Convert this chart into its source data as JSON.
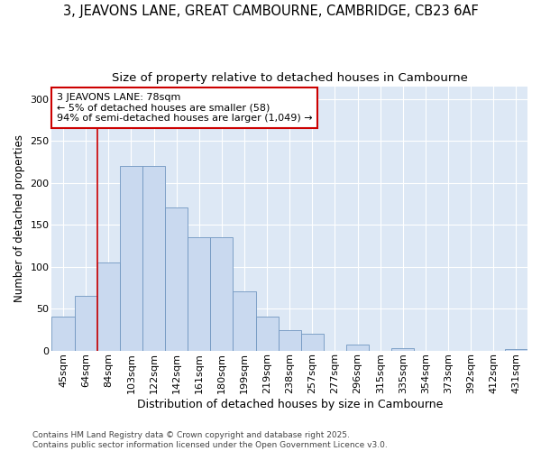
{
  "title1": "3, JEAVONS LANE, GREAT CAMBOURNE, CAMBRIDGE, CB23 6AF",
  "title2": "Size of property relative to detached houses in Cambourne",
  "xlabel": "Distribution of detached houses by size in Cambourne",
  "ylabel": "Number of detached properties",
  "categories": [
    "45sqm",
    "64sqm",
    "84sqm",
    "103sqm",
    "122sqm",
    "142sqm",
    "161sqm",
    "180sqm",
    "199sqm",
    "219sqm",
    "238sqm",
    "257sqm",
    "277sqm",
    "296sqm",
    "315sqm",
    "335sqm",
    "354sqm",
    "373sqm",
    "392sqm",
    "412sqm",
    "431sqm"
  ],
  "values": [
    40,
    65,
    105,
    220,
    220,
    170,
    135,
    135,
    70,
    40,
    24,
    20,
    0,
    7,
    0,
    3,
    0,
    0,
    0,
    0,
    2
  ],
  "bar_color": "#c9d9ef",
  "bar_edge_color": "#7096c0",
  "vline_index": 1,
  "vline_color": "#cc0000",
  "annotation_line1": "3 JEAVONS LANE: 78sqm",
  "annotation_line2": "← 5% of detached houses are smaller (58)",
  "annotation_line3": "94% of semi-detached houses are larger (1,049) →",
  "annotation_box_color": "#ffffff",
  "annotation_box_edge": "#cc0000",
  "ylim": [
    0,
    315
  ],
  "yticks": [
    0,
    50,
    100,
    150,
    200,
    250,
    300
  ],
  "background_color": "#dde8f5",
  "footer": "Contains HM Land Registry data © Crown copyright and database right 2025.\nContains public sector information licensed under the Open Government Licence v3.0.",
  "title1_fontsize": 10.5,
  "title2_fontsize": 9.5,
  "xlabel_fontsize": 9,
  "ylabel_fontsize": 8.5,
  "tick_fontsize": 8,
  "footer_fontsize": 6.5
}
